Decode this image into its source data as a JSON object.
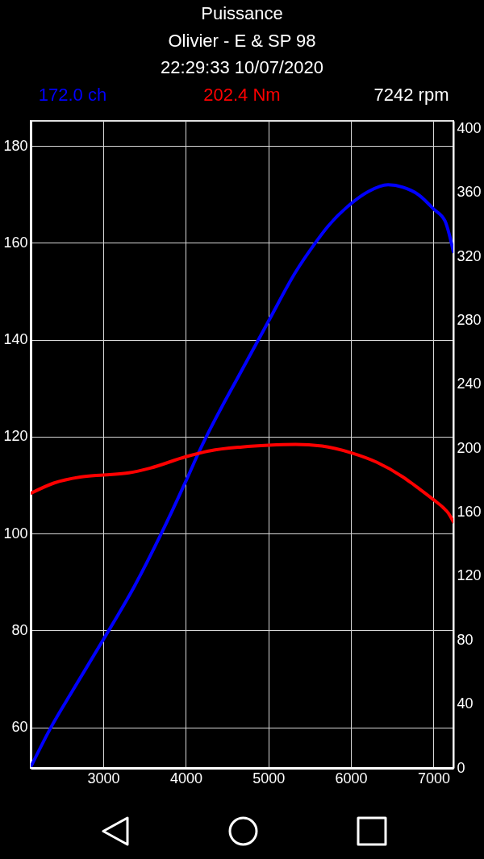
{
  "chart_data": {
    "type": "line",
    "title": "Puissance",
    "subtitle": "Olivier - E & SP 98",
    "annotations": [
      "22:29:33 10/07/2020",
      "7242 rpm"
    ],
    "xlim": [
      2120,
      7240
    ],
    "xticks": [
      3000,
      4000,
      5000,
      6000,
      7000
    ],
    "ylim": [
      51.6,
      185.2
    ],
    "yticks": [
      60,
      80,
      100,
      120,
      140,
      160,
      180
    ],
    "y2lim": [
      0,
      404.8
    ],
    "y2ticks": [
      0,
      40,
      80,
      120,
      160,
      200,
      240,
      280,
      320,
      360,
      400
    ],
    "grid": true,
    "legend": "top",
    "series": [
      {
        "name": "172.0 ch",
        "color": "#0000ff",
        "x": [
          2130,
          2370,
          2630,
          3000,
          3380,
          3700,
          4000,
          4160,
          4680,
          5000,
          5330,
          5560,
          5720,
          6000,
          6210,
          6450,
          6630,
          6830,
          7000,
          7140,
          7190,
          7240
        ],
        "values": [
          52.1,
          60.1,
          67.6,
          78.1,
          89.2,
          99.9,
          110.8,
          116.9,
          133.8,
          143.8,
          154.0,
          159.8,
          163.4,
          168.1,
          170.6,
          172.0,
          171.5,
          169.8,
          167.0,
          164.5,
          161.8,
          158.2
        ]
      },
      {
        "name": "202.4 Nm",
        "color": "#ff0000",
        "axis": "y2",
        "x": [
          2130,
          2400,
          2720,
          3000,
          3310,
          3570,
          4000,
          4290,
          4680,
          5000,
          5330,
          5650,
          6000,
          6310,
          6630,
          6830,
          7000,
          7120,
          7180,
          7240
        ],
        "values": [
          172.0,
          178.2,
          182.0,
          183.3,
          184.6,
          187.6,
          194.7,
          198.4,
          200.8,
          201.9,
          202.4,
          201.4,
          197.2,
          191.3,
          182.0,
          174.5,
          167.8,
          162.7,
          159.4,
          154.0
        ]
      }
    ]
  }
}
